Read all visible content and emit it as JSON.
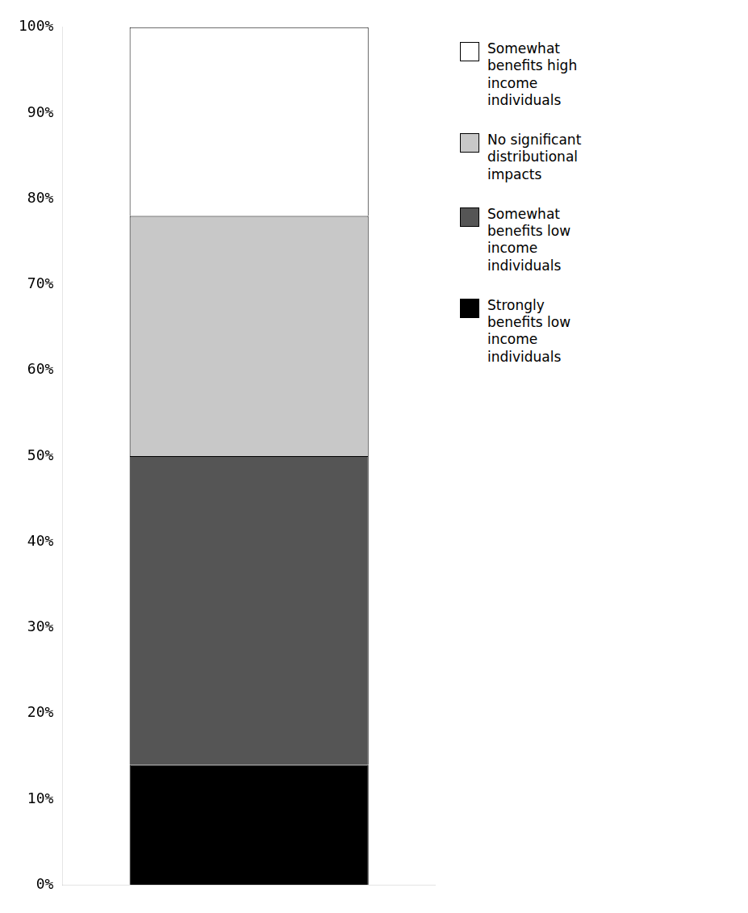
{
  "chart_data": {
    "type": "bar",
    "stacked": true,
    "categories": [
      null
    ],
    "series": [
      {
        "name": "Strongly\nbenefits low\nincome\nindividuals",
        "color": "#000000",
        "values": [
          14
        ]
      },
      {
        "name": "Somewhat\nbenefits low\nincome\nindividuals",
        "color": "#555555",
        "values": [
          36
        ]
      },
      {
        "name": "No significant\ndistributional\nimpacts",
        "color": "#c8c8c8",
        "values": [
          28
        ]
      },
      {
        "name": "Somewhat\nbenefits high\nincome\nindividuals",
        "color": "#ffffff",
        "values": [
          22
        ]
      }
    ],
    "ylim": [
      0,
      100
    ],
    "yticks": [
      {
        "value": 0,
        "label": "0%"
      },
      {
        "value": 10,
        "label": "10%"
      },
      {
        "value": 20,
        "label": "20%"
      },
      {
        "value": 30,
        "label": "30%"
      },
      {
        "value": 40,
        "label": "40%"
      },
      {
        "value": 50,
        "label": "50%"
      },
      {
        "value": 60,
        "label": "60%"
      },
      {
        "value": 70,
        "label": "70%"
      },
      {
        "value": 80,
        "label": "80%"
      },
      {
        "value": 90,
        "label": "90%"
      },
      {
        "value": 100,
        "label": "100%"
      }
    ],
    "grid": false,
    "legend": "right",
    "tick_labels": "y"
  }
}
